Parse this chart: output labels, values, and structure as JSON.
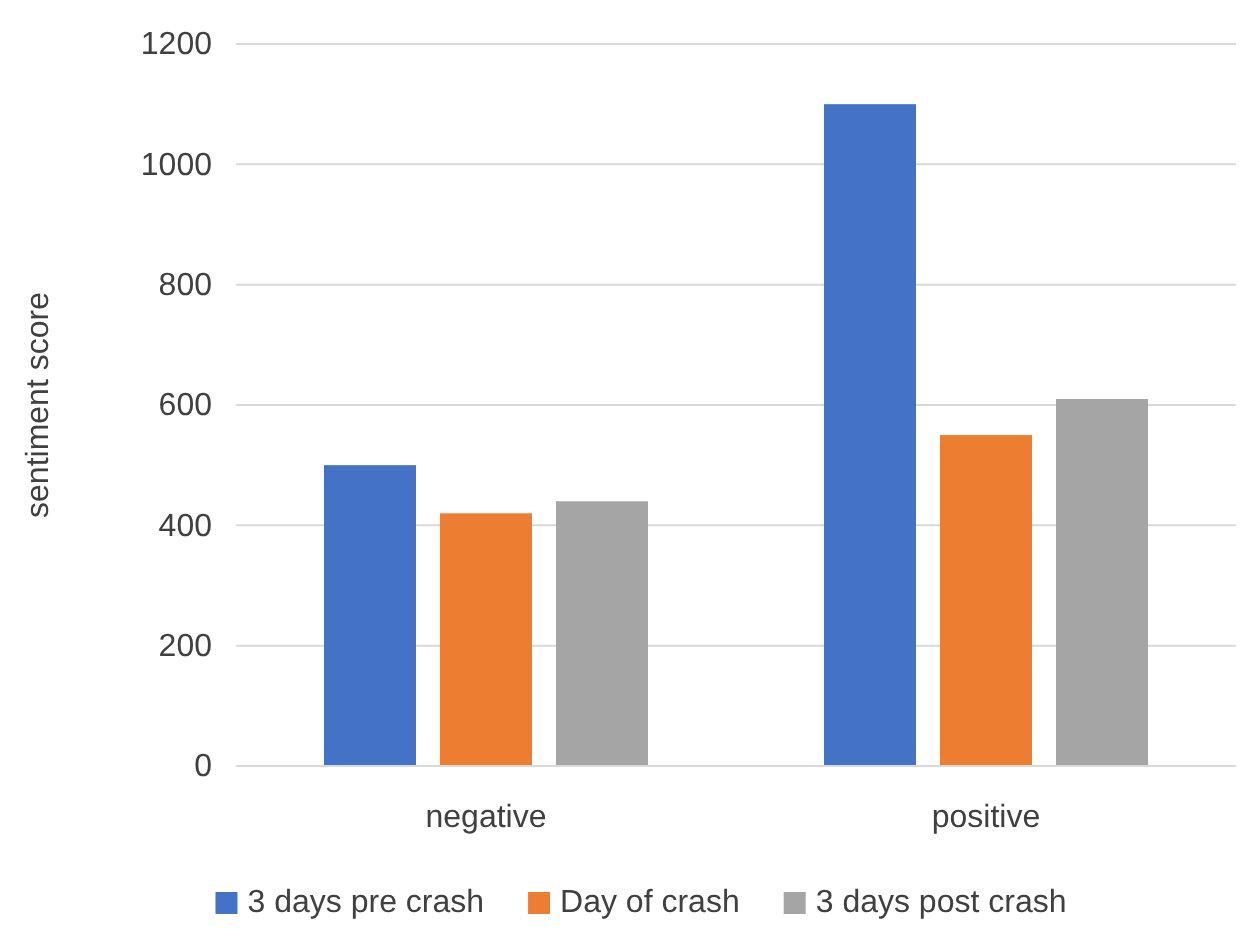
{
  "chart_data": {
    "type": "bar",
    "ylabel": "sentiment score",
    "categories": [
      "negative",
      "positive"
    ],
    "series": [
      {
        "name": "3 days pre crash",
        "color": "#4472c4",
        "values": [
          500,
          1100
        ]
      },
      {
        "name": "Day of crash",
        "color": "#ed7d31",
        "values": [
          420,
          550
        ]
      },
      {
        "name": "3 days post crash",
        "color": "#a5a5a5",
        "values": [
          440,
          610
        ]
      }
    ],
    "ylim": [
      0,
      1200
    ],
    "yticks": [
      0,
      200,
      400,
      600,
      800,
      1000,
      1200
    ],
    "grid": "y",
    "legend": "bottom"
  }
}
